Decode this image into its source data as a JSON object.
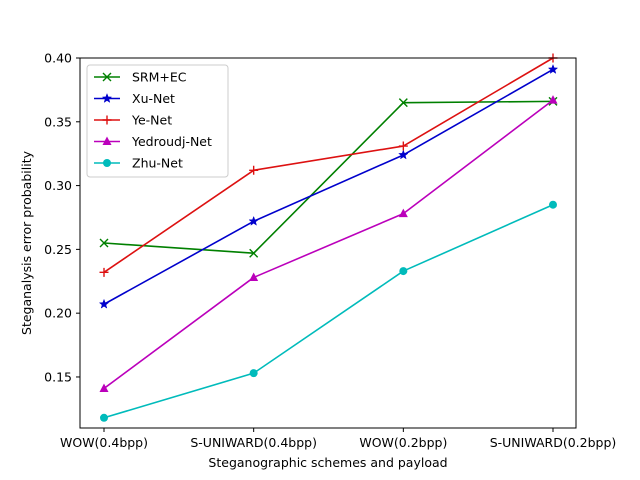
{
  "chart_data": {
    "type": "line",
    "title": "",
    "xlabel": "Steganographic schemes and payload",
    "ylabel": "Steganalysis error probability",
    "categories": [
      "WOW(0.4bpp)",
      "S-UNIWARD(0.4bpp)",
      "WOW(0.2bpp)",
      "S-UNIWARD(0.2bpp)"
    ],
    "ylim": [
      0.11,
      0.4
    ],
    "yticks": [
      0.15,
      0.2,
      0.25,
      0.3,
      0.35,
      0.4
    ],
    "ytick_labels": [
      "0.15",
      "0.20",
      "0.25",
      "0.30",
      "0.35",
      "0.40"
    ],
    "grid": false,
    "legend_position": "top-left",
    "series": [
      {
        "name": "SRM+EC",
        "color": "#008000",
        "marker": "x",
        "values": [
          0.255,
          0.247,
          0.365,
          0.366
        ]
      },
      {
        "name": "Xu-Net",
        "color": "#0000cc",
        "marker": "star",
        "values": [
          0.207,
          0.272,
          0.324,
          0.391
        ]
      },
      {
        "name": "Ye-Net",
        "color": "#dd1111",
        "marker": "plus",
        "values": [
          0.232,
          0.312,
          0.331,
          0.4
        ]
      },
      {
        "name": "Yedroudj-Net",
        "color": "#bb00bb",
        "marker": "triangle",
        "values": [
          0.141,
          0.228,
          0.278,
          0.367
        ]
      },
      {
        "name": "Zhu-Net",
        "color": "#00bbbb",
        "marker": "circle",
        "values": [
          0.118,
          0.153,
          0.233,
          0.285
        ]
      }
    ]
  }
}
